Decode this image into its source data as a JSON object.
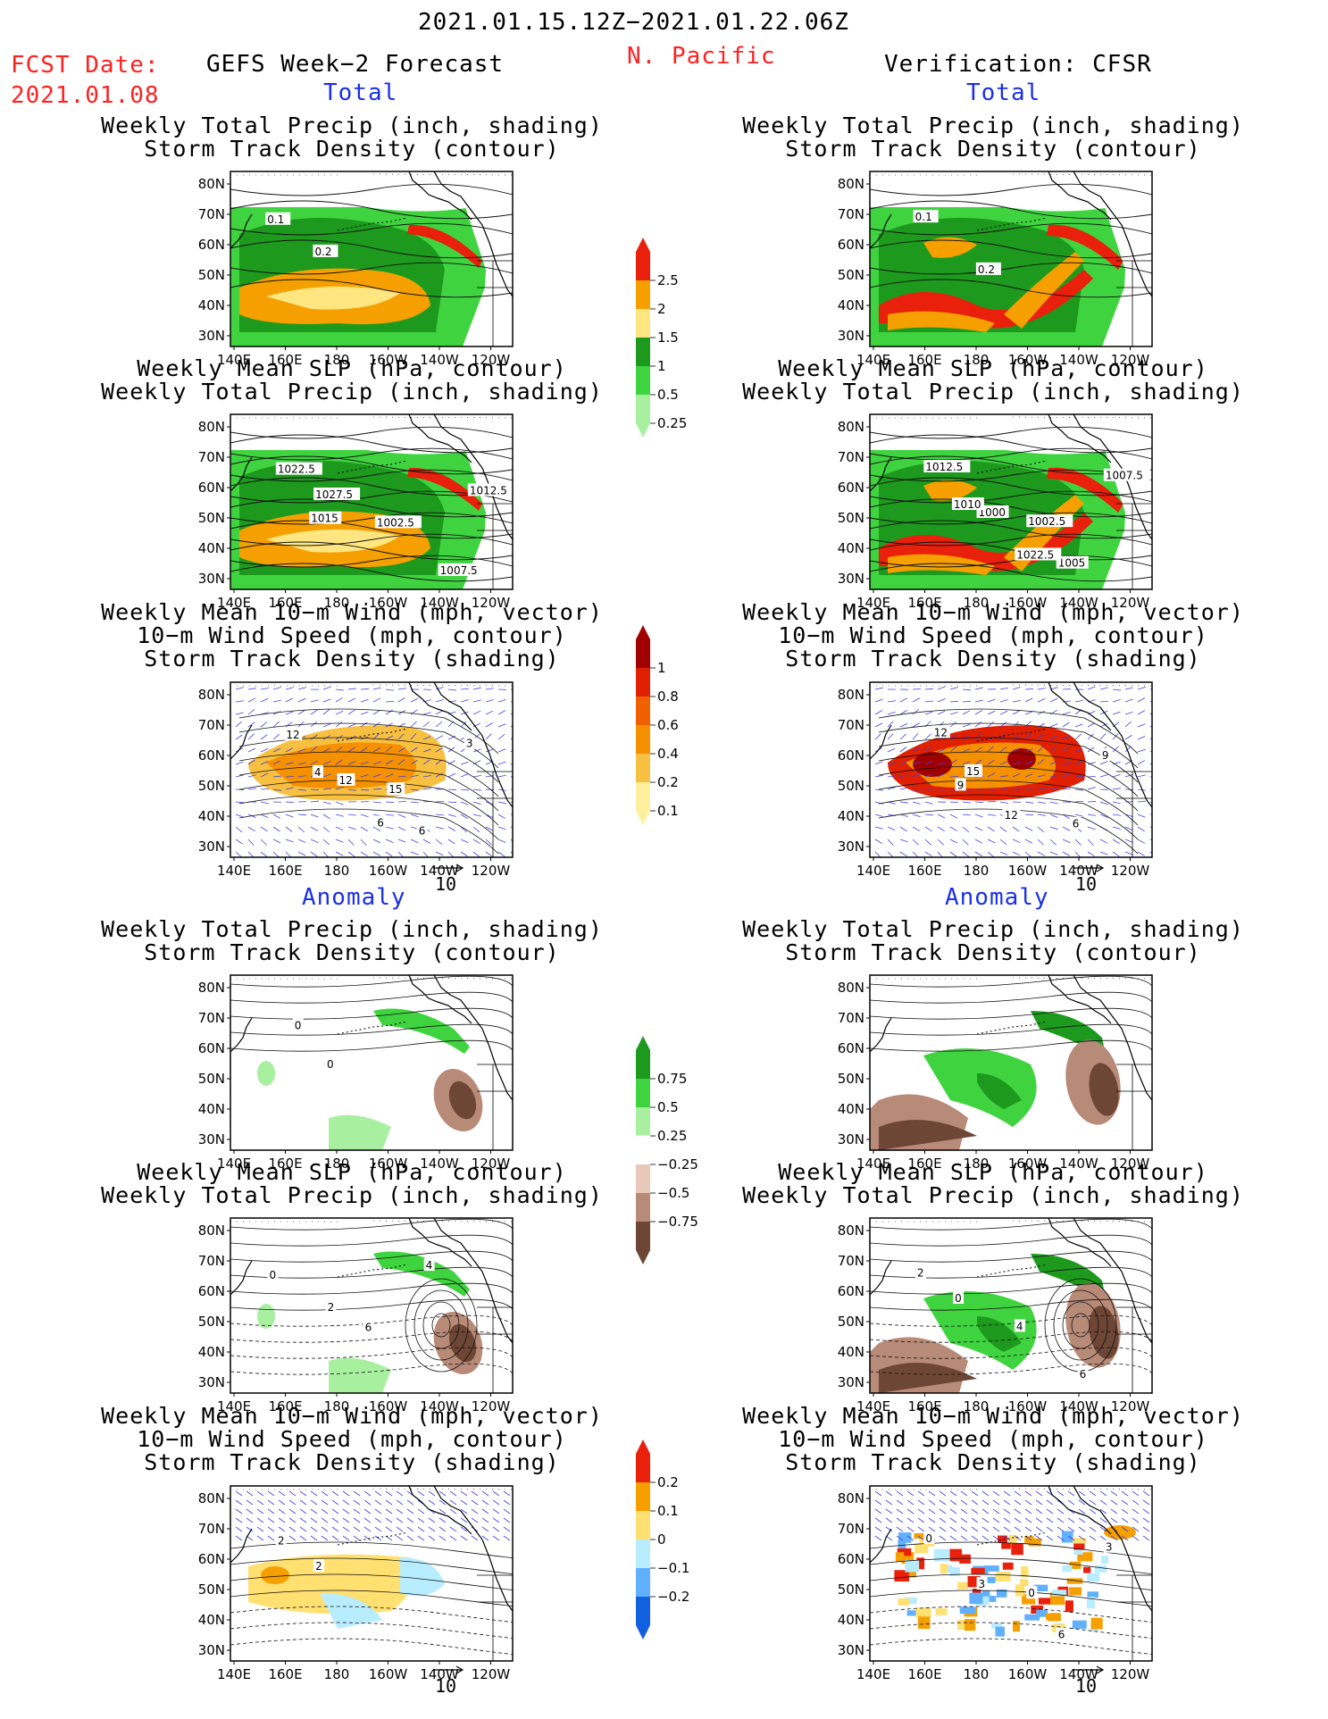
{
  "header": {
    "period": "2021.01.15.12Z−2021.01.22.06Z",
    "region": "N. Pacific",
    "fcst_label": "FCST Date:",
    "fcst_date": "2021.01.08",
    "left_title": "GEFS Week−2 Forecast",
    "right_title": "Verification: CFSR"
  },
  "section_labels": {
    "total": "Total",
    "anomaly": "Anomaly"
  },
  "titles": {
    "precip_storm": [
      "Weekly Total Precip (inch, shading)",
      "Storm Track Density (contour)"
    ],
    "slp_precip": [
      "Weekly Mean SLP (hPa, contour)",
      "Weekly Total Precip (inch, shading)"
    ],
    "wind_storm": [
      "Weekly Mean 10−m Wind (mph, vector)",
      "10−m Wind Speed (mph, contour)",
      "Storm Track Density (shading)"
    ]
  },
  "axes": {
    "lat_ticks": [
      "80N",
      "70N",
      "60N",
      "50N",
      "40N",
      "30N"
    ],
    "lon_ticks": [
      "140E",
      "160E",
      "180",
      "160W",
      "140W",
      "120W"
    ]
  },
  "vector_reference": "10",
  "colorbars": {
    "total_precip": {
      "labels": [
        "2.5",
        "2",
        "1.5",
        "1",
        "0.5",
        "0.25"
      ],
      "colors": [
        "#e8200c",
        "#f5a000",
        "#ffe680",
        "#1d9a1d",
        "#3fd43f",
        "#a8f0a0"
      ]
    },
    "total_storm": {
      "labels": [
        "1",
        "0.8",
        "0.6",
        "0.4",
        "0.2",
        "0.1"
      ],
      "colors": [
        "#a00000",
        "#e02000",
        "#f06000",
        "#f59000",
        "#f8c040",
        "#fff0a0"
      ]
    },
    "anom_precip": {
      "labels": [
        "0.75",
        "0.5",
        "0.25",
        "−0.25",
        "−0.5",
        "−0.75"
      ],
      "colors": [
        "#1d9a1d",
        "#3fd43f",
        "#a8f0a0",
        "#ffffff",
        "#e8c8b8",
        "#b88a78",
        "#6e4636"
      ]
    },
    "anom_storm": {
      "labels": [
        "0.2",
        "0.1",
        "0",
        "−0.1",
        "−0.2"
      ],
      "colors": [
        "#e8200c",
        "#f5a000",
        "#ffe070",
        "#b8ecff",
        "#60b0ff",
        "#1060e0"
      ]
    }
  },
  "contour_labels": {
    "fc_total_precip": [
      "0.1",
      "0.2"
    ],
    "obs_total_precip": [
      "0.1",
      "0.2"
    ],
    "fc_total_slp": [
      "1022.5",
      "1027.5",
      "1002.5",
      "1007.5",
      "1012.5",
      "1015"
    ],
    "obs_total_slp": [
      "1012.5",
      "1000",
      "1002.5",
      "1005",
      "1007.5",
      "1010",
      "1022.5"
    ],
    "fc_total_wind": [
      "12",
      "12",
      "15",
      "6",
      "3",
      "4",
      "6"
    ],
    "obs_total_wind": [
      "12",
      "15",
      "12",
      "6",
      "9",
      "9"
    ],
    "fc_anom_precip": [
      "0",
      "0"
    ],
    "fc_anom_slp": [
      "0",
      "2",
      "6",
      "4"
    ],
    "obs_anom_slp": [
      "2",
      "0",
      "4",
      "6"
    ],
    "fc_anom_wind": [
      "2",
      "2"
    ],
    "obs_anom_wind": [
      "0",
      "3",
      "0",
      "6",
      "3"
    ]
  }
}
